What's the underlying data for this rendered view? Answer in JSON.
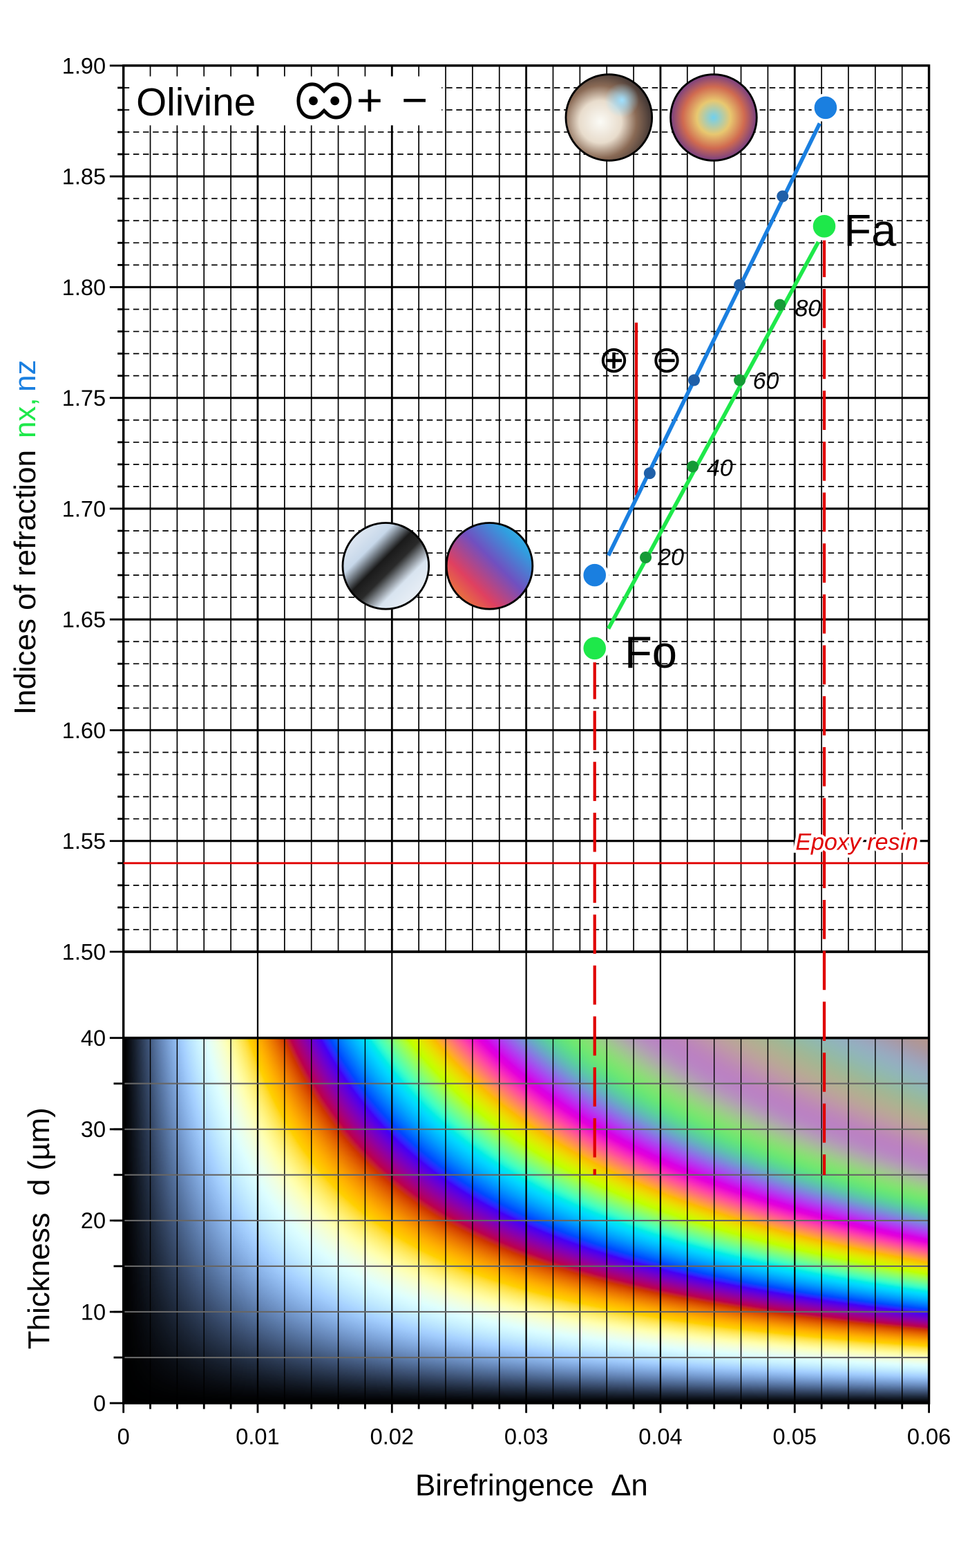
{
  "chart_data": [
    {
      "type": "line",
      "title": "Olivine",
      "title_symbols": [
        "+",
        "−"
      ],
      "xlabel": "Birefringence  Δn",
      "ylabel": "Indices of refraction",
      "ylabel_suffix": {
        "nx": "nx,",
        "nz": "nz"
      },
      "xlim": [
        0,
        0.06
      ],
      "ylim": [
        1.5,
        1.9
      ],
      "yticks": [
        "1.50",
        "1.55",
        "1.60",
        "1.65",
        "1.70",
        "1.75",
        "1.80",
        "1.85",
        "1.90"
      ],
      "series": [
        {
          "name": "nz",
          "color": "#1a7fe0",
          "point_color": "#1f5fa8",
          "x": [
            0.0351,
            0.0392,
            0.0425,
            0.0459,
            0.0491,
            0.0523
          ],
          "y": [
            1.67,
            1.716,
            1.758,
            1.801,
            1.841,
            1.881
          ]
        },
        {
          "name": "nx",
          "color": "#1ee84a",
          "point_color": "#159a36",
          "x": [
            0.0351,
            0.0389,
            0.0424,
            0.0459,
            0.0489,
            0.0522
          ],
          "y": [
            1.637,
            1.678,
            1.719,
            1.758,
            1.792,
            1.8275
          ]
        }
      ],
      "composition_labels": [
        "20",
        "40",
        "60",
        "80"
      ],
      "endmembers": {
        "start": "Fo",
        "end": "Fa"
      },
      "epoxy": {
        "label": "Epoxy resin",
        "n": 1.54
      },
      "sign_boundary": {
        "dn": 0.0382,
        "n_range": [
          1.706,
          1.784
        ],
        "plus": "⊕",
        "minus": "⊖"
      },
      "red_color": "#e00000"
    },
    {
      "type": "heatmap",
      "description_of_values": "interference color = f(Δn × d)",
      "xlabel": "Birefringence  Δn",
      "ylabel": "Thickness  d (µm)",
      "xlim": [
        0,
        0.06
      ],
      "ylim": [
        0,
        40
      ],
      "xticks": [
        "0",
        "0.01",
        "0.02",
        "0.03",
        "0.04",
        "0.05",
        "0.06"
      ],
      "yticks": [
        "0",
        "10",
        "20",
        "30",
        "40"
      ],
      "marker_lines_dn": [
        0.0351,
        0.0522
      ],
      "marker_lines_down_to_d": 25
    }
  ]
}
